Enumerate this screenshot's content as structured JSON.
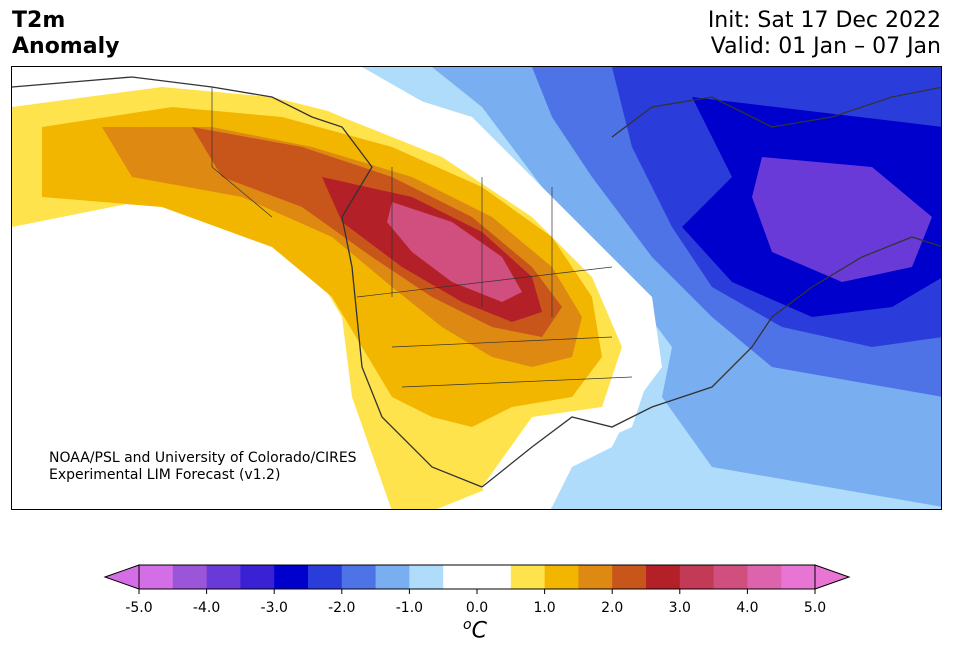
{
  "title": {
    "line1": "T2m",
    "line2": "Anomaly",
    "init": "Init: Sat 17 Dec 2022",
    "valid": "Valid: 01 Jan – 07 Jan"
  },
  "credit": {
    "line1": "NOAA/PSL and University of Colorado/CIRES",
    "line2": "Experimental LIM Forecast (v1.2)"
  },
  "colorbar": {
    "unit_base": "C",
    "unit_sup": "o",
    "colors": [
      "#d36ee6",
      "#9b55d9",
      "#6a3ad9",
      "#3a22d4",
      "#0000cc",
      "#2a3ddb",
      "#4d73e6",
      "#79aef0",
      "#aedcfa",
      "#ffffff",
      "#ffffff",
      "#ffe34d",
      "#f3b600",
      "#de8912",
      "#c8561b",
      "#b32027",
      "#c23a55",
      "#d04f7f",
      "#dd63ad",
      "#e875d3"
    ],
    "extend_low": "#d36ee6",
    "extend_high": "#e875d3",
    "tick_labels": [
      "-5.0",
      "-4.0",
      "-3.0",
      "-2.0",
      "-1.0",
      "0.0",
      "1.0",
      "2.0",
      "3.0",
      "4.0",
      "5.0"
    ],
    "min": -5.0,
    "max": 5.0,
    "step": 0.5
  }
}
